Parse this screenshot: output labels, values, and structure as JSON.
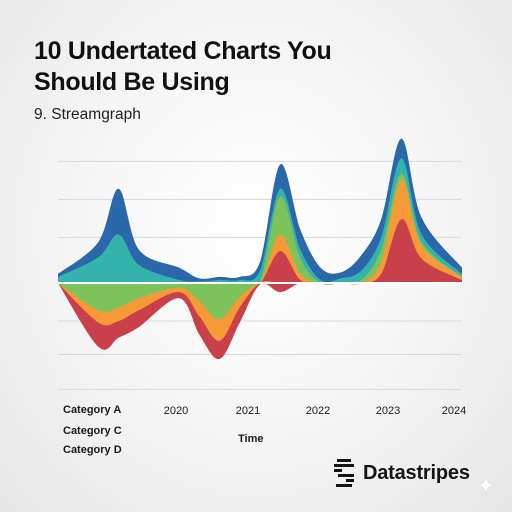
{
  "title_line1": "10 Undertated Charts You",
  "title_line2": "Should Be Using",
  "subtitle": "9. Streamgraph",
  "brand": {
    "name": "Datastripes",
    "icon": "datastripes-logo-icon"
  },
  "chart_data": {
    "type": "area",
    "subtype": "streamgraph",
    "xlabel": "Time",
    "ylabel": "",
    "xlim": [
      2019.0,
      2024.0
    ],
    "ylim": [
      -10,
      10
    ],
    "x_ticks": [
      "2020",
      "2021",
      "2022",
      "2023",
      "2024"
    ],
    "legend": [
      "Category A",
      "Category C",
      "Category D"
    ],
    "legend_position": "bottom-left",
    "grid": true,
    "x": [
      2019.0,
      2019.5,
      2019.75,
      2020.0,
      2020.5,
      2020.75,
      2021.0,
      2021.25,
      2021.5,
      2021.75,
      2022.0,
      2022.25,
      2022.5,
      2022.75,
      2023.0,
      2023.25,
      2023.5,
      2024.0
    ],
    "series": [
      {
        "color": "#c9404a",
        "values": [
          0.0,
          0.0,
          0.0,
          0.0,
          0.0,
          0.0,
          0.0,
          0.0,
          0.0,
          2.1,
          0.2,
          0.0,
          0.0,
          0.0,
          0.6,
          4.2,
          1.6,
          0.2
        ]
      },
      {
        "color": "#f59a36",
        "values": [
          0.0,
          0.0,
          0.0,
          0.0,
          0.0,
          0.0,
          0.0,
          0.0,
          0.0,
          1.1,
          0.4,
          0.0,
          0.0,
          0.0,
          0.8,
          2.6,
          0.9,
          0.2
        ]
      },
      {
        "color": "#7cc35a",
        "values": [
          0.0,
          0.0,
          0.0,
          0.0,
          0.0,
          0.0,
          0.0,
          0.0,
          0.1,
          2.5,
          1.0,
          0.0,
          0.0,
          0.2,
          0.8,
          0.4,
          0.2,
          0.0
        ]
      },
      {
        "color": "#34b3ad",
        "values": [
          0.4,
          1.7,
          3.2,
          1.2,
          0.2,
          0.1,
          0.2,
          0.2,
          0.7,
          0.5,
          0.6,
          0.2,
          0.3,
          0.6,
          0.8,
          1.0,
          0.5,
          0.2
        ]
      },
      {
        "color": "#2a67ab",
        "values": [
          0.2,
          1.0,
          3.0,
          1.0,
          0.8,
          0.2,
          0.2,
          0.2,
          0.6,
          1.6,
          1.3,
          0.8,
          0.4,
          1.0,
          1.2,
          1.3,
          1.1,
          0.4
        ]
      },
      {
        "color": "#7cc35a",
        "values": [
          0.0,
          1.8,
          1.6,
          1.0,
          0.3,
          1.2,
          2.4,
          0.9,
          0.0,
          0.0,
          0.0,
          0.0,
          0.0,
          0.0,
          0.0,
          0.0,
          0.0,
          0.0
        ]
      },
      {
        "color": "#f59a36",
        "values": [
          0.0,
          0.8,
          0.9,
          0.8,
          0.3,
          1.0,
          1.4,
          0.7,
          0.0,
          0.0,
          0.0,
          0.0,
          0.0,
          0.0,
          0.0,
          0.0,
          0.0,
          0.0
        ]
      },
      {
        "color": "#c9404a",
        "values": [
          0.0,
          1.6,
          1.1,
          1.1,
          0.4,
          1.2,
          1.2,
          1.0,
          0.1,
          0.6,
          0.0,
          0.0,
          0.0,
          0.0,
          0.0,
          0.0,
          0.0,
          0.0
        ]
      }
    ],
    "stack_direction": [
      "up",
      "up",
      "up",
      "up",
      "up",
      "down",
      "down",
      "down"
    ]
  }
}
